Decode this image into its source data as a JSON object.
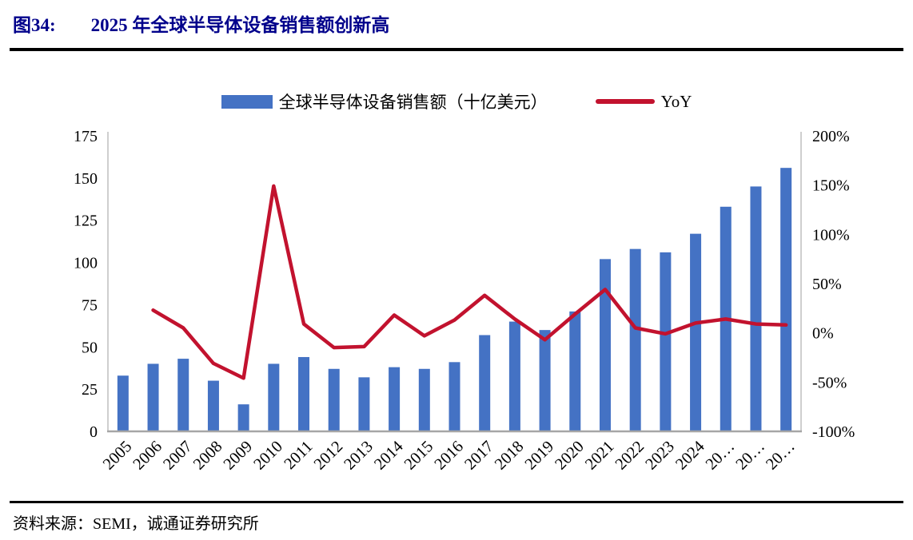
{
  "figure": {
    "label": "图34:",
    "title": "2025 年全球半导体设备销售额创新高"
  },
  "source": "资料来源：SEMI，诚通证券研究所",
  "colors": {
    "title": "#00008B",
    "bar": "#4472C4",
    "line": "#C2122E",
    "axis_side": "#C3C3C3",
    "axis_bottom": "#A6A6A6",
    "text": "#000000"
  },
  "chart_data": {
    "type": "bar",
    "subtype": "bar-line-combo",
    "title": "2025 年全球半导体设备销售额创新高",
    "categories": [
      "2005",
      "2006",
      "2007",
      "2008",
      "2009",
      "2010",
      "2011",
      "2012",
      "2013",
      "2014",
      "2015",
      "2016",
      "2017",
      "2018",
      "2019",
      "2020",
      "2021",
      "2022",
      "2023",
      "2024",
      "20…",
      "20…",
      "20…"
    ],
    "series": [
      {
        "name": "全球半导体设备销售额（十亿美元）",
        "type": "bar",
        "axis": "left",
        "values": [
          33,
          40,
          43,
          30,
          16,
          40,
          44,
          37,
          32,
          38,
          37,
          41,
          57,
          65,
          60,
          71,
          102,
          108,
          106,
          117,
          133,
          145,
          156
        ]
      },
      {
        "name": "YoY",
        "type": "line",
        "axis": "right",
        "unit": "%",
        "values": [
          null,
          23,
          5,
          -31,
          -46,
          149,
          9,
          -15,
          -14,
          18,
          -3,
          13,
          38,
          14,
          -7,
          19,
          44,
          5,
          -1,
          10,
          14,
          9,
          8
        ]
      }
    ],
    "left_axis": {
      "min": 0,
      "max": 175,
      "step": 25,
      "tick_labels": [
        "0",
        "25",
        "50",
        "75",
        "100",
        "125",
        "150",
        "175"
      ]
    },
    "right_axis": {
      "min": -100,
      "max": 200,
      "step": 50,
      "tick_labels": [
        "-100%",
        "-50%",
        "0%",
        "50%",
        "100%",
        "150%",
        "200%"
      ]
    },
    "grid": false,
    "legend_position": "top"
  }
}
